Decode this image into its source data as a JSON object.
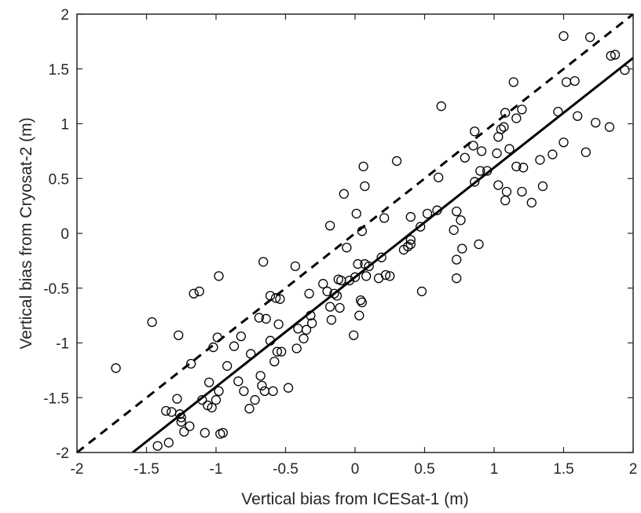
{
  "chart_data": {
    "type": "scatter",
    "title": "",
    "xlabel": "Vertical bias from ICESat-1 (m)",
    "ylabel": "Vertical bias from Cryosat-2 (m)",
    "xlim": [
      -2,
      2
    ],
    "ylim": [
      -2,
      2
    ],
    "xticks": [
      "-2",
      "-1.5",
      "-1",
      "-0.5",
      "0",
      "0.5",
      "1",
      "1.5",
      "2"
    ],
    "yticks": [
      "-2",
      "-1.5",
      "-1",
      "-0.5",
      "0",
      "0.5",
      "1",
      "1.5",
      "2"
    ],
    "grid": false,
    "marker": "open-circle",
    "lines": [
      {
        "style": "dashed",
        "x": [
          -2,
          2
        ],
        "y": [
          -2,
          2
        ]
      },
      {
        "style": "solid",
        "x": [
          -1.6,
          2
        ],
        "y": [
          -2,
          1.6
        ]
      }
    ],
    "points": [
      [
        -1.72,
        -1.23
      ],
      [
        -1.46,
        -0.81
      ],
      [
        -1.42,
        -1.94
      ],
      [
        -1.36,
        -1.62
      ],
      [
        -1.34,
        -1.91
      ],
      [
        -1.32,
        -1.63
      ],
      [
        -1.28,
        -1.51
      ],
      [
        -1.27,
        -0.93
      ],
      [
        -1.26,
        -1.65
      ],
      [
        -1.25,
        -1.68
      ],
      [
        -1.25,
        -1.72
      ],
      [
        -1.23,
        -1.81
      ],
      [
        -1.19,
        -1.76
      ],
      [
        -1.18,
        -1.19
      ],
      [
        -1.16,
        -0.55
      ],
      [
        -1.12,
        -0.53
      ],
      [
        -1.1,
        -1.52
      ],
      [
        -1.08,
        -1.82
      ],
      [
        -1.06,
        -1.57
      ],
      [
        -1.05,
        -1.36
      ],
      [
        -1.03,
        -1.59
      ],
      [
        -1.02,
        -1.04
      ],
      [
        -1.0,
        -1.52
      ],
      [
        -0.99,
        -0.95
      ],
      [
        -0.98,
        -1.44
      ],
      [
        -0.98,
        -0.39
      ],
      [
        -0.97,
        -1.83
      ],
      [
        -0.95,
        -1.82
      ],
      [
        -0.92,
        -1.21
      ],
      [
        -0.87,
        -1.03
      ],
      [
        -0.84,
        -1.35
      ],
      [
        -0.82,
        -0.94
      ],
      [
        -0.8,
        -1.44
      ],
      [
        -0.76,
        -1.6
      ],
      [
        -0.75,
        -1.1
      ],
      [
        -0.72,
        -1.52
      ],
      [
        -0.69,
        -0.77
      ],
      [
        -0.68,
        -1.3
      ],
      [
        -0.67,
        -1.39
      ],
      [
        -0.66,
        -0.26
      ],
      [
        -0.65,
        -1.44
      ],
      [
        -0.64,
        -0.78
      ],
      [
        -0.61,
        -0.98
      ],
      [
        -0.61,
        -0.57
      ],
      [
        -0.59,
        -1.44
      ],
      [
        -0.58,
        -1.17
      ],
      [
        -0.57,
        -0.59
      ],
      [
        -0.56,
        -1.08
      ],
      [
        -0.55,
        -0.83
      ],
      [
        -0.54,
        -0.6
      ],
      [
        -0.53,
        -1.08
      ],
      [
        -0.48,
        -1.41
      ],
      [
        -0.43,
        -0.3
      ],
      [
        -0.42,
        -1.05
      ],
      [
        -0.41,
        -0.87
      ],
      [
        -0.37,
        -0.96
      ],
      [
        -0.35,
        -0.88
      ],
      [
        -0.33,
        -0.55
      ],
      [
        -0.32,
        -0.75
      ],
      [
        -0.31,
        -0.82
      ],
      [
        -0.23,
        -0.46
      ],
      [
        -0.2,
        -0.53
      ],
      [
        -0.18,
        0.07
      ],
      [
        -0.18,
        -0.67
      ],
      [
        -0.17,
        -0.79
      ],
      [
        -0.15,
        -0.55
      ],
      [
        -0.13,
        -0.57
      ],
      [
        -0.12,
        -0.42
      ],
      [
        -0.11,
        -0.68
      ],
      [
        -0.1,
        -0.43
      ],
      [
        -0.08,
        0.36
      ],
      [
        -0.06,
        -0.13
      ],
      [
        -0.04,
        -0.43
      ],
      [
        -0.01,
        -0.93
      ],
      [
        0.0,
        -0.4
      ],
      [
        0.01,
        0.18
      ],
      [
        0.02,
        -0.28
      ],
      [
        0.03,
        -0.75
      ],
      [
        0.04,
        -0.61
      ],
      [
        0.05,
        -0.63
      ],
      [
        0.05,
        0.02
      ],
      [
        0.06,
        0.61
      ],
      [
        0.07,
        0.43
      ],
      [
        0.07,
        -0.28
      ],
      [
        0.08,
        -0.39
      ],
      [
        0.1,
        -0.3
      ],
      [
        0.17,
        -0.41
      ],
      [
        0.19,
        -0.22
      ],
      [
        0.21,
        0.14
      ],
      [
        0.22,
        -0.38
      ],
      [
        0.25,
        -0.39
      ],
      [
        0.3,
        0.66
      ],
      [
        0.35,
        -0.15
      ],
      [
        0.38,
        -0.12
      ],
      [
        0.4,
        0.15
      ],
      [
        0.4,
        -0.06
      ],
      [
        0.4,
        -0.1
      ],
      [
        0.47,
        0.06
      ],
      [
        0.48,
        -0.53
      ],
      [
        0.52,
        0.18
      ],
      [
        0.59,
        0.21
      ],
      [
        0.6,
        0.51
      ],
      [
        0.62,
        1.16
      ],
      [
        0.71,
        0.03
      ],
      [
        0.73,
        0.2
      ],
      [
        0.73,
        -0.24
      ],
      [
        0.73,
        -0.41
      ],
      [
        0.76,
        0.12
      ],
      [
        0.77,
        -0.14
      ],
      [
        0.79,
        0.69
      ],
      [
        0.85,
        0.8
      ],
      [
        0.86,
        0.93
      ],
      [
        0.86,
        0.47
      ],
      [
        0.89,
        -0.1
      ],
      [
        0.9,
        0.57
      ],
      [
        0.91,
        0.75
      ],
      [
        0.95,
        0.57
      ],
      [
        1.02,
        0.73
      ],
      [
        1.03,
        0.88
      ],
      [
        1.03,
        0.44
      ],
      [
        1.05,
        0.95
      ],
      [
        1.07,
        0.97
      ],
      [
        1.08,
        1.1
      ],
      [
        1.08,
        0.3
      ],
      [
        1.09,
        0.38
      ],
      [
        1.11,
        0.77
      ],
      [
        1.14,
        1.38
      ],
      [
        1.16,
        0.61
      ],
      [
        1.16,
        1.05
      ],
      [
        1.2,
        1.13
      ],
      [
        1.2,
        0.38
      ],
      [
        1.21,
        0.6
      ],
      [
        1.27,
        0.28
      ],
      [
        1.33,
        0.67
      ],
      [
        1.35,
        0.43
      ],
      [
        1.42,
        0.72
      ],
      [
        1.46,
        1.11
      ],
      [
        1.5,
        1.8
      ],
      [
        1.5,
        0.83
      ],
      [
        1.52,
        1.38
      ],
      [
        1.58,
        1.39
      ],
      [
        1.6,
        1.07
      ],
      [
        1.66,
        0.74
      ],
      [
        1.69,
        1.79
      ],
      [
        1.73,
        1.01
      ],
      [
        1.83,
        0.97
      ],
      [
        1.84,
        1.62
      ],
      [
        1.87,
        1.63
      ],
      [
        1.94,
        1.49
      ]
    ]
  }
}
